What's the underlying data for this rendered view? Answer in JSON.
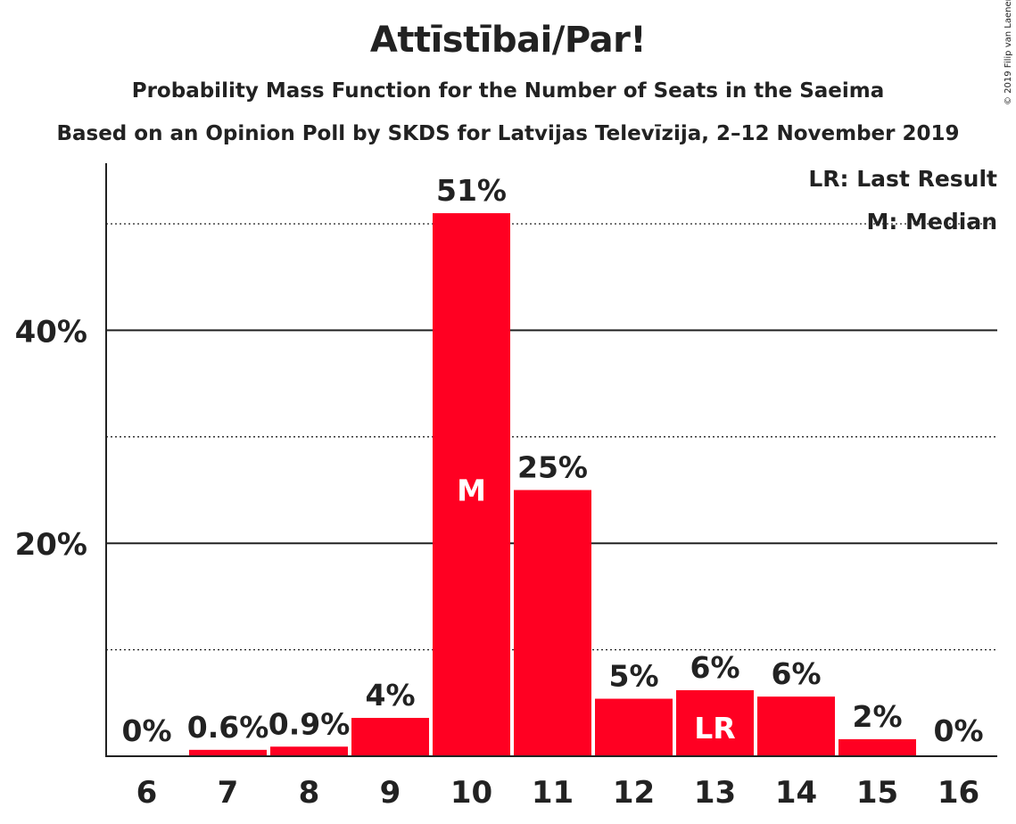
{
  "header": {
    "title": "Attīstībai/Par!",
    "subtitle1": "Probability Mass Function for the Number of Seats in the Saeima",
    "subtitle2": "Based on an Opinion Poll by SKDS for Latvijas Televīzija, 2–12 November 2019",
    "copyright": "© 2019 Filip van Laenen"
  },
  "legend": {
    "lr": "LR: Last Result",
    "m": "M: Median"
  },
  "colors": {
    "bar": "#FF0022",
    "text": "#222222"
  },
  "chart_data": {
    "type": "bar",
    "categories": [
      "6",
      "7",
      "8",
      "9",
      "10",
      "11",
      "12",
      "13",
      "14",
      "15",
      "16"
    ],
    "values": [
      0,
      0.6,
      0.9,
      3.6,
      51,
      25,
      5.4,
      6.2,
      5.6,
      1.6,
      0
    ],
    "data_labels": [
      "0%",
      "0.6%",
      "0.9%",
      "4%",
      "51%",
      "25%",
      "5%",
      "6%",
      "6%",
      "2%",
      "0%"
    ],
    "bar_marks": {
      "10": "M",
      "13": "LR"
    },
    "y_ticks": [
      20,
      40
    ],
    "y_tick_labels": [
      "20%",
      "40%"
    ],
    "y_minor_ticks": [
      10,
      30,
      50
    ],
    "ylim": [
      0,
      55.7
    ],
    "xlabel": "",
    "ylabel": "",
    "legend_position": "top-right"
  }
}
